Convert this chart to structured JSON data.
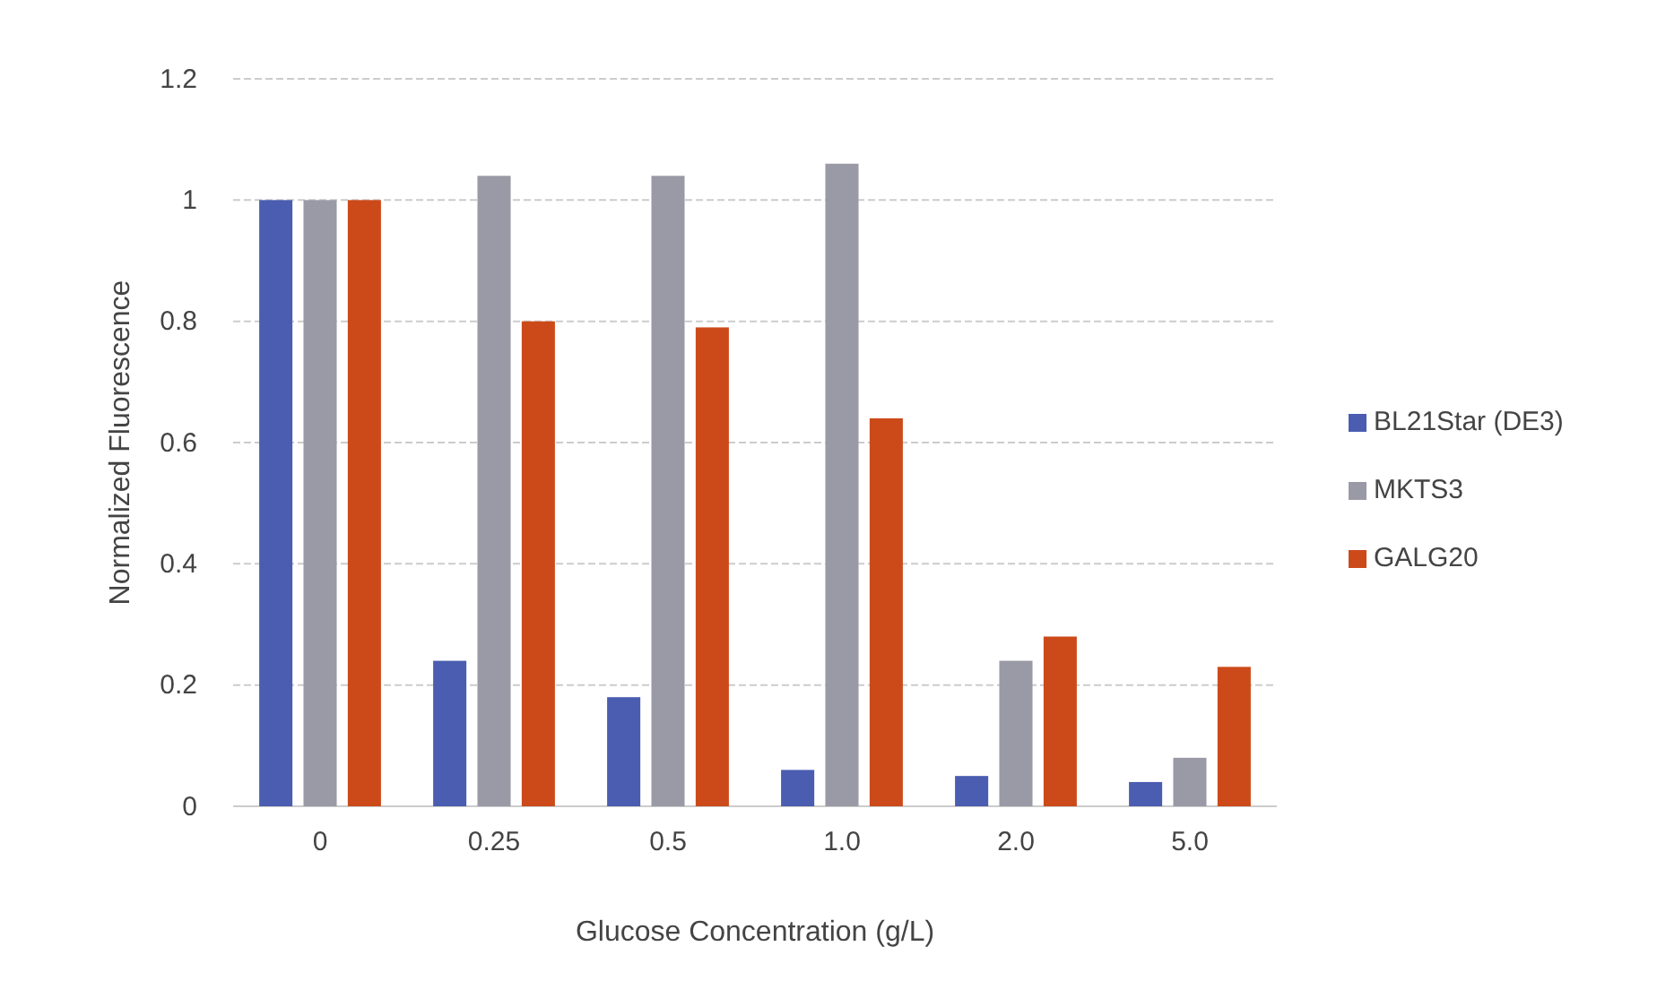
{
  "chart_data": {
    "type": "bar",
    "xlabel": "Glucose Concentration (g/L)",
    "ylabel": "Normalized Fluorescence",
    "categories": [
      "0",
      "0.25",
      "0.5",
      "1.0",
      "2.0",
      "5.0"
    ],
    "series": [
      {
        "name": "BL21Star (DE3)",
        "color": "#4a5db0",
        "values": [
          1,
          0.24,
          0.18,
          0.06,
          0.05,
          0.04
        ]
      },
      {
        "name": "MKTS3",
        "color": "#9a9aa6",
        "values": [
          1,
          1.04,
          1.04,
          1.06,
          0.24,
          0.08
        ]
      },
      {
        "name": "GALG20",
        "color": "#cc4a1a",
        "values": [
          1,
          0.8,
          0.79,
          0.64,
          0.28,
          0.23
        ]
      }
    ],
    "ylim": [
      0,
      1.2
    ],
    "yticks": [
      0,
      0.2,
      0.4,
      0.6,
      0.8,
      1,
      1.2
    ],
    "grid": "y",
    "legend": "right"
  }
}
